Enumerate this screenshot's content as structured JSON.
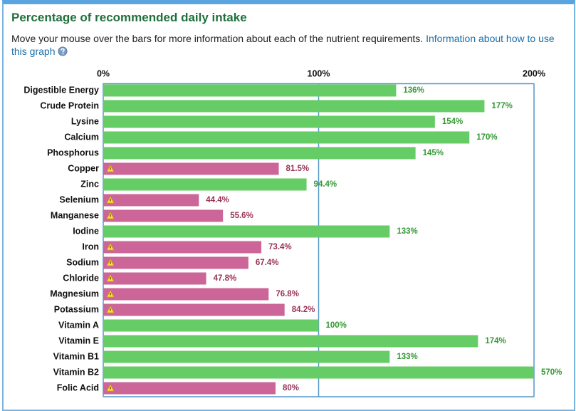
{
  "page": {
    "title": "Percentage of recommended daily intake",
    "description": "Move your mouse over the bars for more information about each of the nutrient requirements.",
    "help_link": "Information about how to use this graph"
  },
  "chart_data": {
    "type": "bar",
    "orientation": "horizontal",
    "categories": [
      "Digestible Energy",
      "Crude Protein",
      "Lysine",
      "Calcium",
      "Phosphorus",
      "Copper",
      "Zinc",
      "Selenium",
      "Manganese",
      "Iodine",
      "Iron",
      "Sodium",
      "Chloride",
      "Magnesium",
      "Potassium",
      "Vitamin A",
      "Vitamin E",
      "Vitamin B1",
      "Vitamin B2",
      "Folic Acid"
    ],
    "values": [
      136,
      177,
      154,
      170,
      145,
      81.5,
      94.4,
      44.4,
      55.6,
      133,
      73.4,
      67.4,
      47.8,
      76.8,
      84.2,
      100,
      174,
      133,
      570,
      80
    ],
    "value_labels": [
      "136%",
      "177%",
      "154%",
      "170%",
      "145%",
      "81.5%",
      "94.4%",
      "44.4%",
      "55.6%",
      "133%",
      "73.4%",
      "67.4%",
      "47.8%",
      "76.8%",
      "84.2%",
      "100%",
      "174%",
      "133%",
      "570%",
      "80%"
    ],
    "colors": [
      "#66cc66",
      "#66cc66",
      "#66cc66",
      "#66cc66",
      "#66cc66",
      "#cc6699",
      "#66cc66",
      "#cc6699",
      "#cc6699",
      "#66cc66",
      "#cc6699",
      "#cc6699",
      "#cc6699",
      "#cc6699",
      "#cc6699",
      "#66cc66",
      "#66cc66",
      "#66cc66",
      "#66cc66",
      "#cc6699"
    ],
    "warning_color": "#cc6699",
    "xlim": [
      0,
      200
    ],
    "xticks": [
      {
        "value": 0,
        "label": "0%"
      },
      {
        "value": 100,
        "label": "100%"
      },
      {
        "value": 200,
        "label": "200%"
      }
    ]
  }
}
